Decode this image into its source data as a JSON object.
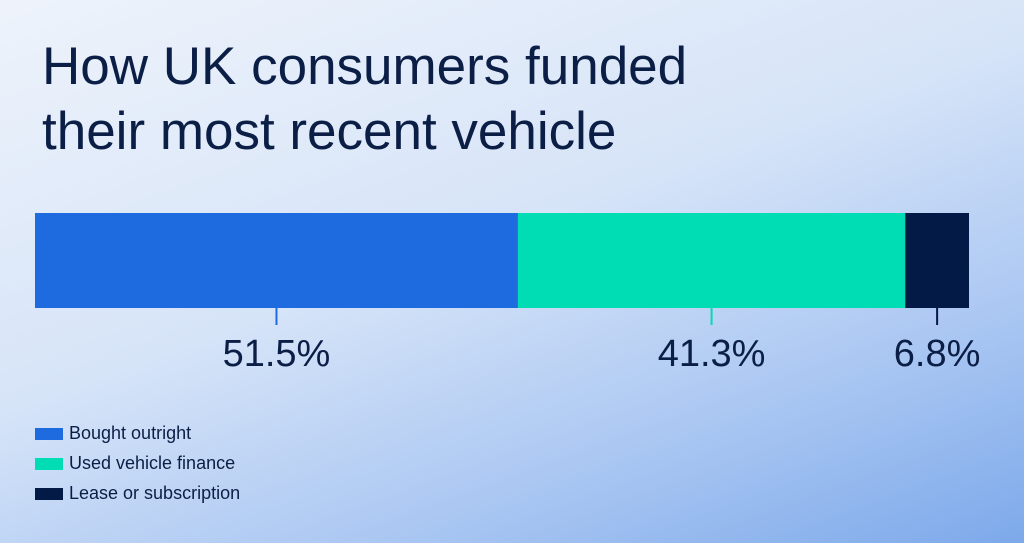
{
  "chart_data": {
    "type": "stacked-bar",
    "title": "How UK consumers funded their most recent vehicle",
    "series": [
      {
        "name": "Bought outright",
        "color": "#1e6be0",
        "values": [
          51.5
        ],
        "value_labels": [
          "51.5%"
        ]
      },
      {
        "name": "Used vehicle finance",
        "color": "#00dcb4",
        "values": [
          41.3
        ],
        "value_labels": [
          "41.3%"
        ]
      },
      {
        "name": "Lease or subscription",
        "color": "#021a45",
        "values": [
          6.8
        ],
        "value_labels": [
          "6.8%"
        ]
      }
    ]
  }
}
